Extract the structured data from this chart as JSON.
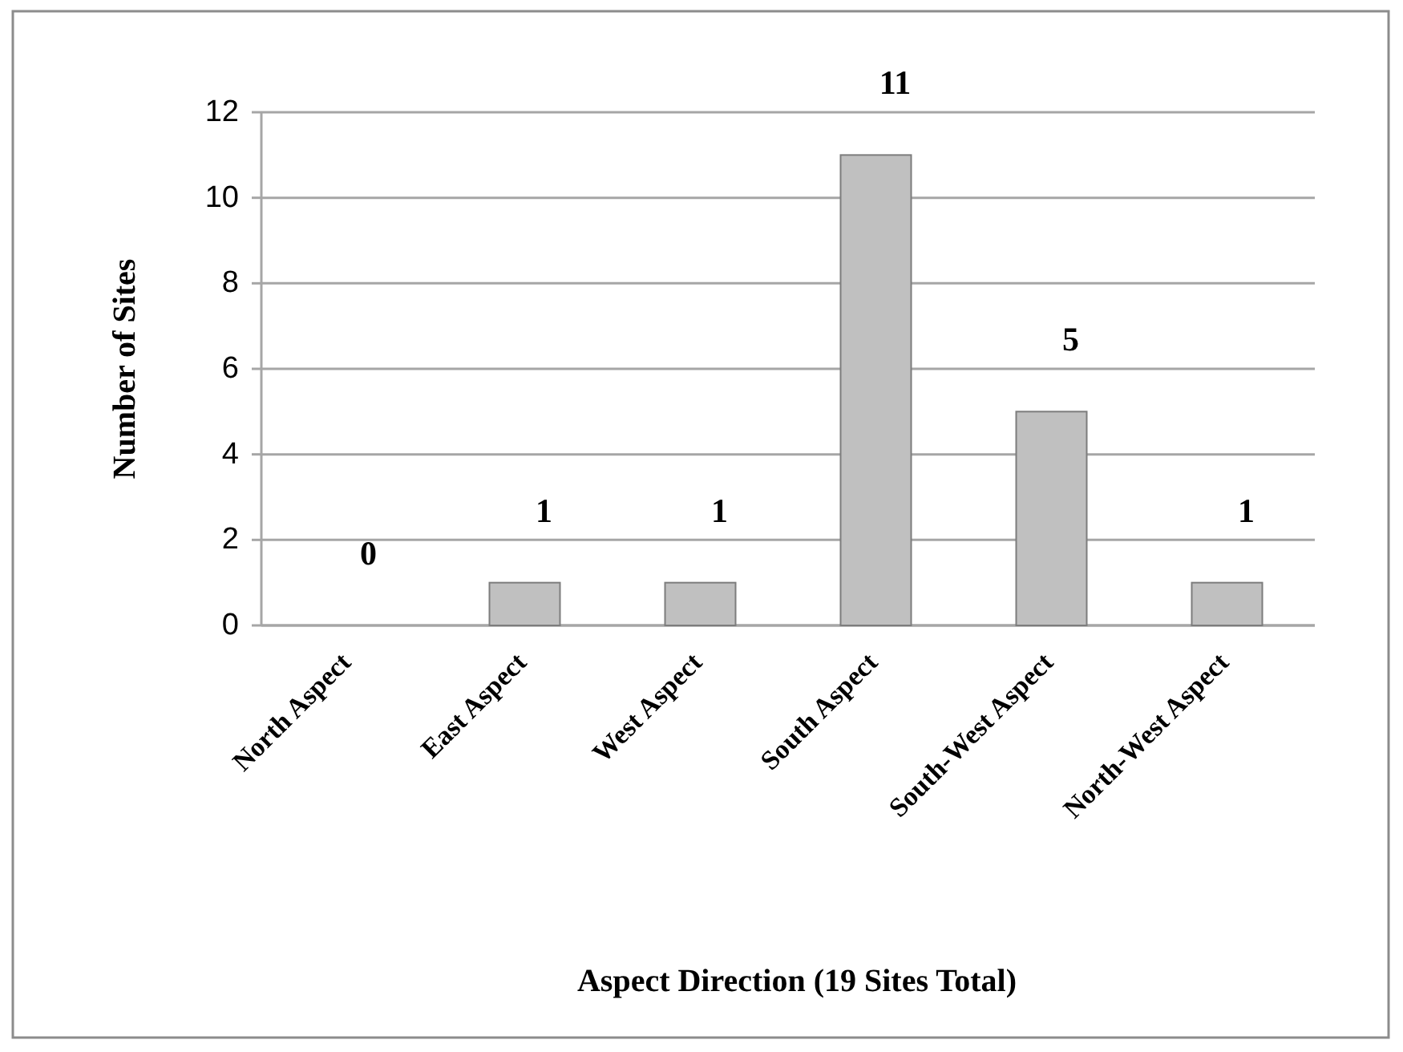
{
  "chart_data": {
    "type": "bar",
    "categories": [
      "North Aspect",
      "East Aspect",
      "West Aspect",
      "South Aspect",
      "South-West Aspect",
      "North-West Aspect"
    ],
    "values": [
      0,
      1,
      1,
      11,
      5,
      1
    ],
    "color": "#c0c0c0",
    "xlabel": "Aspect Direction (19 Sites Total)",
    "ylabel": "Number of Sites",
    "ylim": [
      0,
      12
    ],
    "yticks": [
      0,
      2,
      4,
      6,
      8,
      10,
      12
    ],
    "grid": "y",
    "data_labels": true
  }
}
